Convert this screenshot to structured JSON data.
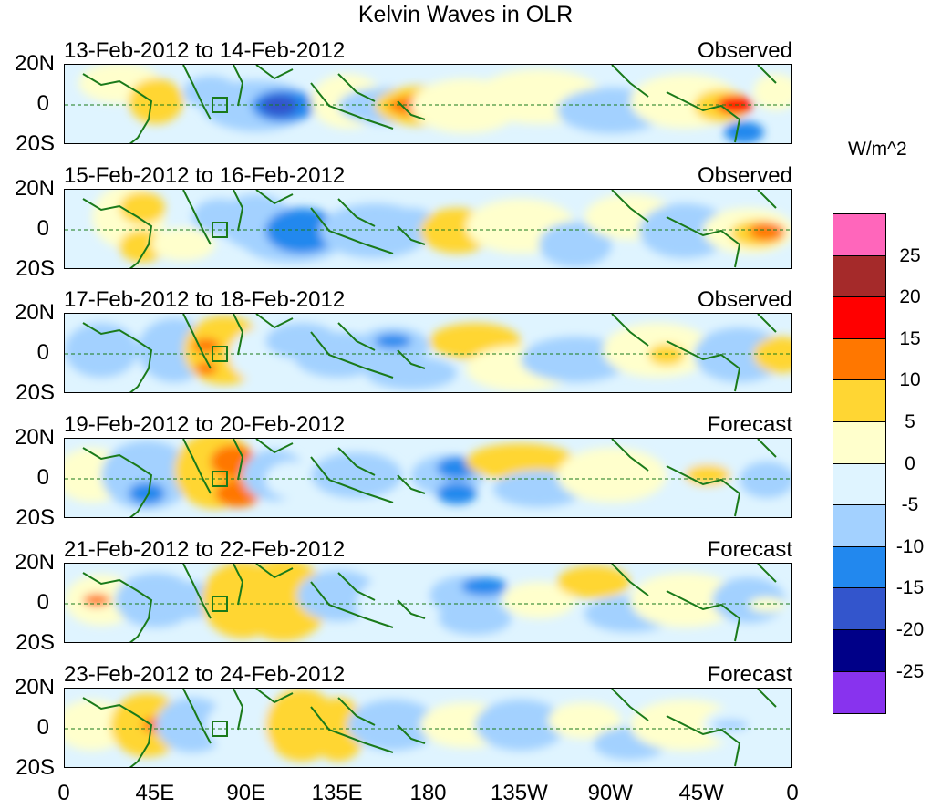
{
  "title": "Kelvin Waves in OLR",
  "panels": [
    {
      "date": "13-Feb-2012 to 14-Feb-2012",
      "tag": "Observed"
    },
    {
      "date": "15-Feb-2012 to 16-Feb-2012",
      "tag": "Observed"
    },
    {
      "date": "17-Feb-2012 to 18-Feb-2012",
      "tag": "Observed"
    },
    {
      "date": "19-Feb-2012 to 20-Feb-2012",
      "tag": "Forecast"
    },
    {
      "date": "21-Feb-2012 to 22-Feb-2012",
      "tag": "Forecast"
    },
    {
      "date": "23-Feb-2012 to 24-Feb-2012",
      "tag": "Forecast"
    }
  ],
  "lat_labels": {
    "north": "20N",
    "equator": "0",
    "south": "20S"
  },
  "lon_labels": [
    "0",
    "45E",
    "90E",
    "135E",
    "180",
    "135W",
    "90W",
    "45W",
    "0"
  ],
  "legend": {
    "unit": "W/m^2",
    "values": [
      "25",
      "20",
      "15",
      "10",
      "5",
      "0",
      "-5",
      "-10",
      "-15",
      "-20",
      "-25"
    ],
    "colors": [
      "#ff66bb",
      "#a52a2a",
      "#ff0000",
      "#ff7700",
      "#ffd633",
      "#ffffcc",
      "#dff4ff",
      "#a3d1ff",
      "#2288ee",
      "#3355cc",
      "#000088",
      "#8833ee"
    ]
  }
}
